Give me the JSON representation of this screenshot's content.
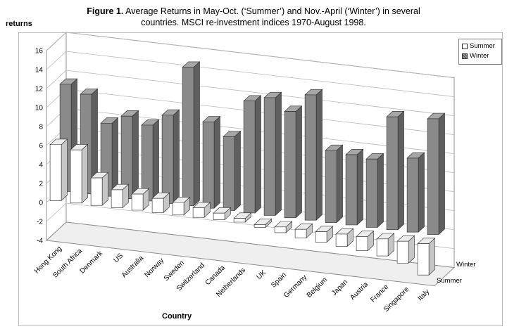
{
  "title": {
    "prefix": "Figure 1.",
    "line1_rest": " Average Returns in May-Oct. (‘Summer’) and Nov.-April (‘Winter’) in several",
    "line2": "countries. MSCI re-investment indices 1970-August 1998."
  },
  "chart_data": {
    "type": "bar",
    "subtype": "3d-column",
    "title": "Figure 1. Average Returns in May-Oct. (‘Summer’) and Nov.-April (‘Winter’) in several countries. MSCI re-investment indices 1970-August 1998.",
    "xlabel": "Country",
    "ylabel": "returns",
    "ylim": [
      -4,
      16
    ],
    "ytick_step": 2,
    "grid": true,
    "legend_position": "top-right",
    "categories": [
      "Hong Kong",
      "South Africa",
      "Denmark",
      "US",
      "Australia",
      "Norway",
      "Sweden",
      "Switzerland",
      "Canada",
      "Netherlands",
      "UK",
      "Spain",
      "Germany",
      "Belgium",
      "Japan",
      "Austria",
      "France",
      "Singapore",
      "Italy"
    ],
    "series": [
      {
        "name": "Summer",
        "color": "#ffffff",
        "values": [
          5.9,
          5.6,
          2.9,
          1.9,
          1.7,
          1.5,
          1.3,
          1.0,
          0.7,
          0.4,
          -0.3,
          -0.6,
          -0.9,
          -1.1,
          -1.3,
          -1.5,
          -1.8,
          -2.3,
          -3.3
        ]
      },
      {
        "name": "Winter",
        "color": "#8a8a8a",
        "values": [
          11.3,
          10.5,
          7.7,
          8.7,
          8.0,
          9.3,
          14.6,
          9.1,
          7.8,
          11.8,
          12.4,
          11.2,
          13.2,
          7.6,
          7.4,
          7.2,
          11.9,
          7.8,
          12.2
        ]
      }
    ]
  }
}
